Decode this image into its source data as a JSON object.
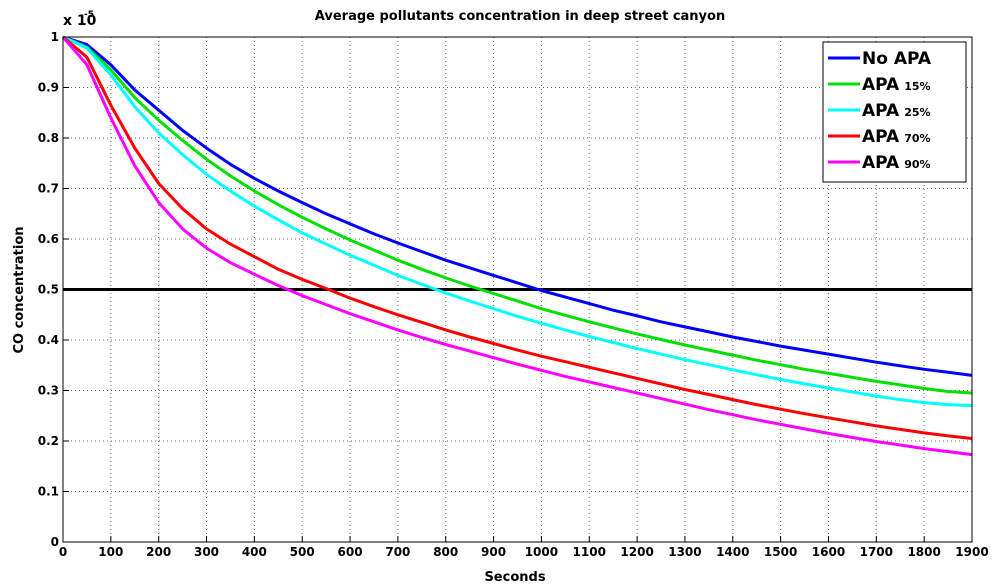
{
  "chart_data": {
    "type": "line",
    "title": "Average pollutants concentration in deep street canyon",
    "xlabel": "Seconds",
    "ylabel": "CO concentration",
    "y_exponent_base": "x 10",
    "y_exponent_power": "-5",
    "xlim": [
      0,
      1900
    ],
    "ylim": [
      0,
      1
    ],
    "xticks": [
      0,
      100,
      200,
      300,
      400,
      500,
      600,
      700,
      800,
      900,
      1000,
      1100,
      1200,
      1300,
      1400,
      1500,
      1600,
      1700,
      1800,
      1900
    ],
    "yticks": [
      0,
      0.1,
      0.2,
      0.3,
      0.4,
      0.5,
      0.6,
      0.7,
      0.8,
      0.9,
      1
    ],
    "grid": true,
    "legend_position": "top-right",
    "threshold_line": {
      "y": 0.5,
      "color": "#000000"
    },
    "x": [
      0,
      50,
      100,
      150,
      200,
      250,
      300,
      350,
      400,
      450,
      500,
      550,
      600,
      650,
      700,
      750,
      800,
      850,
      900,
      950,
      1000,
      1050,
      1100,
      1150,
      1200,
      1250,
      1300,
      1350,
      1400,
      1450,
      1500,
      1550,
      1600,
      1650,
      1700,
      1750,
      1800,
      1850,
      1900
    ],
    "series": [
      {
        "name": "No APA",
        "legend_main": "No APA",
        "legend_sub": "",
        "color": "#0000ff",
        "values": [
          1.0,
          0.985,
          0.945,
          0.895,
          0.855,
          0.815,
          0.78,
          0.748,
          0.72,
          0.695,
          0.672,
          0.65,
          0.63,
          0.61,
          0.592,
          0.575,
          0.558,
          0.543,
          0.528,
          0.513,
          0.498,
          0.485,
          0.472,
          0.459,
          0.448,
          0.436,
          0.426,
          0.416,
          0.406,
          0.397,
          0.388,
          0.38,
          0.372,
          0.364,
          0.356,
          0.349,
          0.342,
          0.336,
          0.33
        ]
      },
      {
        "name": "APA 15%",
        "legend_main": "APA",
        "legend_sub": "15%",
        "color": "#00e000",
        "values": [
          1.0,
          0.98,
          0.935,
          0.88,
          0.835,
          0.795,
          0.758,
          0.725,
          0.695,
          0.668,
          0.643,
          0.62,
          0.598,
          0.578,
          0.558,
          0.54,
          0.523,
          0.507,
          0.492,
          0.477,
          0.462,
          0.449,
          0.436,
          0.424,
          0.412,
          0.401,
          0.39,
          0.38,
          0.37,
          0.36,
          0.351,
          0.342,
          0.334,
          0.326,
          0.318,
          0.311,
          0.304,
          0.298,
          0.295
        ]
      },
      {
        "name": "APA 25%",
        "legend_main": "APA",
        "legend_sub": "25%",
        "color": "#00ffff",
        "values": [
          1.0,
          0.978,
          0.925,
          0.862,
          0.81,
          0.767,
          0.728,
          0.695,
          0.665,
          0.638,
          0.612,
          0.59,
          0.568,
          0.548,
          0.528,
          0.51,
          0.493,
          0.477,
          0.462,
          0.447,
          0.433,
          0.42,
          0.407,
          0.395,
          0.383,
          0.372,
          0.361,
          0.351,
          0.341,
          0.331,
          0.322,
          0.313,
          0.305,
          0.297,
          0.289,
          0.282,
          0.276,
          0.272,
          0.27
        ]
      },
      {
        "name": "APA 70%",
        "legend_main": "APA",
        "legend_sub": "70%",
        "color": "#ff0000",
        "values": [
          1.0,
          0.96,
          0.865,
          0.78,
          0.71,
          0.66,
          0.62,
          0.59,
          0.565,
          0.54,
          0.52,
          0.502,
          0.483,
          0.466,
          0.45,
          0.435,
          0.42,
          0.406,
          0.393,
          0.38,
          0.368,
          0.357,
          0.346,
          0.335,
          0.324,
          0.313,
          0.302,
          0.292,
          0.282,
          0.272,
          0.263,
          0.254,
          0.246,
          0.238,
          0.23,
          0.223,
          0.216,
          0.21,
          0.205
        ]
      },
      {
        "name": "APA 90%",
        "legend_main": "APA",
        "legend_sub": "90%",
        "color": "#ff00ff",
        "values": [
          1.0,
          0.945,
          0.84,
          0.745,
          0.672,
          0.62,
          0.582,
          0.553,
          0.53,
          0.508,
          0.488,
          0.47,
          0.452,
          0.436,
          0.42,
          0.405,
          0.391,
          0.378,
          0.365,
          0.352,
          0.34,
          0.328,
          0.317,
          0.306,
          0.295,
          0.284,
          0.273,
          0.262,
          0.252,
          0.242,
          0.233,
          0.224,
          0.215,
          0.207,
          0.199,
          0.192,
          0.185,
          0.179,
          0.173
        ]
      }
    ]
  }
}
